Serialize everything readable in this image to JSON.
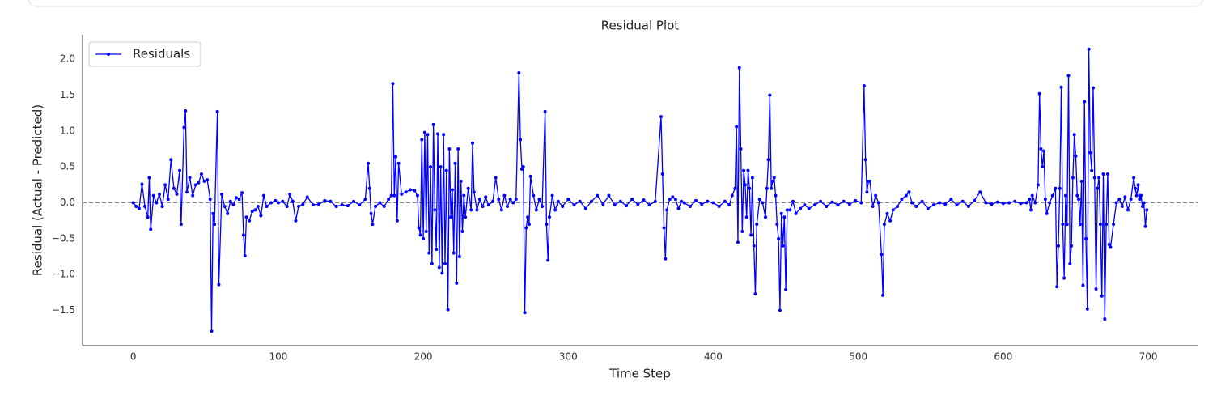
{
  "chart_data": {
    "type": "line",
    "title": "Residual Plot",
    "xlabel": "Time Step",
    "ylabel": "Residual (Actual - Predicted)",
    "legend": "upper left",
    "grid": false,
    "reference_line": {
      "y": 0,
      "color": "#888888",
      "style": "dashed"
    },
    "xlim": [
      -35,
      734
    ],
    "ylim": [
      -1.99,
      2.34
    ],
    "xticks": [
      0,
      100,
      200,
      300,
      400,
      500,
      600,
      700
    ],
    "yticks": [
      {
        "value": -1.5,
        "label": "−1.5"
      },
      {
        "value": -1.0,
        "label": "−1.0"
      },
      {
        "value": -0.5,
        "label": "−0.5"
      },
      {
        "value": 0,
        "label": "0.0"
      },
      {
        "value": 0.5,
        "label": "0.5"
      },
      {
        "value": 1.0,
        "label": "1.0"
      },
      {
        "value": 1.5,
        "label": "1.5"
      },
      {
        "value": 2.0,
        "label": "2.0"
      }
    ],
    "x": [
      0,
      2,
      4,
      6,
      8,
      10,
      11,
      12,
      14,
      16,
      18,
      20,
      22,
      24,
      26,
      28,
      30,
      32,
      33,
      35,
      36,
      37,
      39,
      41,
      43,
      45,
      47,
      49,
      51,
      53,
      54,
      55,
      56,
      58,
      59,
      61,
      63,
      65,
      67,
      69,
      71,
      73,
      75,
      76,
      77,
      78,
      80,
      82,
      84,
      86,
      88,
      90,
      92,
      95,
      98,
      100,
      103,
      106,
      108,
      110,
      112,
      114,
      117,
      120,
      124,
      128,
      132,
      136,
      140,
      144,
      148,
      152,
      156,
      160,
      162,
      163,
      164,
      165,
      167,
      170,
      173,
      176,
      178,
      179,
      180,
      181,
      182,
      183,
      185,
      188,
      191,
      194,
      196,
      197,
      198,
      199,
      200,
      201,
      202,
      203,
      204,
      205,
      206,
      207,
      208,
      209,
      210,
      211,
      212,
      213,
      214,
      215,
      216,
      217,
      218,
      219,
      220,
      221,
      222,
      223,
      224,
      225,
      226,
      227,
      228,
      229,
      231,
      233,
      234,
      235,
      237,
      239,
      241,
      243,
      245,
      248,
      250,
      252,
      254,
      256,
      258,
      260,
      262,
      264,
      266,
      267,
      268,
      269,
      270,
      271,
      272,
      273,
      274,
      276,
      278,
      280,
      282,
      284,
      285,
      286,
      287,
      289,
      291,
      293,
      296,
      300,
      304,
      308,
      312,
      316,
      320,
      324,
      328,
      332,
      336,
      340,
      344,
      348,
      352,
      356,
      360,
      364,
      365,
      366,
      367,
      368,
      370,
      372,
      374,
      376,
      378,
      380,
      384,
      388,
      392,
      396,
      400,
      404,
      408,
      411,
      413,
      415,
      416,
      417,
      418,
      419,
      420,
      421,
      422,
      423,
      424,
      425,
      426,
      427,
      428,
      429,
      430,
      432,
      434,
      436,
      437,
      438,
      439,
      440,
      441,
      442,
      443,
      444,
      445,
      446,
      447,
      448,
      449,
      450,
      451,
      453,
      455,
      457,
      460,
      463,
      466,
      470,
      474,
      478,
      482,
      486,
      490,
      494,
      498,
      502,
      504,
      505,
      506,
      507,
      508,
      510,
      512,
      514,
      516,
      517,
      518,
      520,
      522,
      524,
      527,
      530,
      533,
      535,
      537,
      540,
      544,
      548,
      552,
      556,
      560,
      564,
      568,
      572,
      576,
      580,
      584,
      588,
      592,
      596,
      600,
      604,
      608,
      612,
      616,
      618,
      619,
      620,
      622,
      624,
      625,
      626,
      627,
      628,
      629,
      630,
      632,
      634,
      636,
      637,
      638,
      639,
      640,
      641,
      642,
      643,
      644,
      645,
      646,
      647,
      648,
      649,
      650,
      651,
      652,
      653,
      654,
      655,
      656,
      657,
      658,
      659,
      660,
      661,
      662,
      663,
      664,
      665,
      666,
      667,
      668,
      669,
      670,
      671,
      672,
      673,
      674,
      676,
      678,
      680,
      682,
      684,
      686,
      688,
      690,
      691,
      692,
      693,
      694,
      695,
      696,
      697,
      698,
      699
    ],
    "series": [
      {
        "name": "Residuals",
        "color": "#0000ff",
        "values": [
          0,
          -0.05,
          -0.08,
          0.26,
          -0.05,
          -0.2,
          0.35,
          -0.37,
          0.1,
          0,
          0.12,
          -0.05,
          0.25,
          0.05,
          0.6,
          0.2,
          0.12,
          0.45,
          -0.3,
          1.05,
          1.28,
          0.15,
          0.35,
          0.1,
          0.25,
          0.28,
          0.4,
          0.3,
          0.32,
          0.05,
          -1.79,
          -0.15,
          -0.3,
          1.27,
          -1.14,
          0.12,
          -0.05,
          -0.15,
          0.02,
          -0.03,
          0.07,
          0.05,
          0.14,
          -0.45,
          -0.74,
          -0.2,
          -0.25,
          -0.12,
          -0.1,
          -0.05,
          -0.18,
          0.1,
          -0.05,
          0,
          0.03,
          0,
          0.02,
          -0.05,
          0.12,
          0.02,
          -0.25,
          -0.05,
          -0.02,
          0.08,
          -0.03,
          -0.02,
          0.03,
          0.02,
          -0.05,
          -0.03,
          -0.04,
          0.02,
          -0.03,
          0.05,
          0.55,
          0.2,
          -0.15,
          -0.3,
          -0.05,
          0,
          -0.05,
          0.05,
          0.1,
          1.66,
          0.1,
          0.64,
          -0.25,
          0.55,
          0.12,
          0.15,
          0.18,
          0.17,
          0.1,
          -0.35,
          -0.45,
          0.88,
          -0.5,
          0.98,
          -0.4,
          0.95,
          -0.7,
          0.5,
          -0.85,
          1.09,
          -0.1,
          -0.65,
          0.96,
          -0.9,
          0.5,
          -0.98,
          0.95,
          -0.85,
          0.45,
          -1.49,
          0.75,
          -0.2,
          0.18,
          -0.7,
          0.55,
          -1.12,
          0.75,
          -0.75,
          0.3,
          -0.4,
          0.1,
          -0.2,
          0.2,
          -0.1,
          0.83,
          0.15,
          -0.1,
          0.05,
          -0.05,
          0.08,
          -0.03,
          0.02,
          0.35,
          0.05,
          -0.1,
          0.1,
          -0.05,
          0.05,
          0,
          0.05,
          1.81,
          0.88,
          0.47,
          0.5,
          -1.53,
          -0.35,
          -0.2,
          -0.3,
          0.37,
          0.1,
          -0.1,
          0.05,
          -0.05,
          1.27,
          -0.3,
          -0.8,
          -0.2,
          0.1,
          -0.1,
          0.02,
          -0.05,
          0.05,
          -0.03,
          0.02,
          -0.08,
          0.02,
          0.1,
          -0.02,
          0.1,
          -0.03,
          0.02,
          -0.04,
          0.05,
          -0.02,
          0.04,
          -0.03,
          0.02,
          1.2,
          0.4,
          -0.35,
          -0.78,
          -0.1,
          0.05,
          0.08,
          0.05,
          -0.08,
          0.02,
          0,
          -0.05,
          0.03,
          -0.02,
          0.02,
          0,
          -0.05,
          0.02,
          -0.03,
          0.1,
          0.2,
          1.06,
          -0.55,
          1.88,
          0.75,
          -0.4,
          0.45,
          0.25,
          -0.2,
          0.45,
          0.2,
          -0.45,
          0.35,
          -0.6,
          -1.27,
          -0.3,
          0.05,
          0,
          -0.2,
          0.2,
          0.6,
          1.5,
          0.2,
          0.3,
          0.35,
          0.1,
          -0.3,
          -0.5,
          -1.5,
          -0.15,
          -0.6,
          -0.2,
          -1.21,
          -0.1,
          -0.1,
          0.02,
          -0.15,
          -0.08,
          -0.03,
          -0.08,
          -0.03,
          0.02,
          -0.05,
          0.01,
          -0.03,
          0.02,
          -0.02,
          0.03,
          0,
          1.63,
          0.6,
          0.15,
          0.3,
          0.3,
          -0.05,
          0.1,
          0,
          -0.72,
          -1.29,
          -0.3,
          -0.15,
          -0.25,
          -0.1,
          -0.05,
          0.05,
          0.1,
          0.15,
          0,
          -0.05,
          0.02,
          -0.08,
          -0.03,
          0,
          -0.02,
          0.05,
          -0.03,
          0.02,
          -0.05,
          0.03,
          0.15,
          0,
          -0.02,
          0.01,
          -0.01,
          0,
          0.02,
          -0.01,
          0,
          0.05,
          -0.1,
          0.1,
          0,
          0.25,
          1.52,
          0.75,
          0.5,
          0.72,
          0.05,
          -0.15,
          0,
          0.1,
          0.2,
          -1.17,
          -0.6,
          0.2,
          1.61,
          -0.3,
          -1.05,
          0.1,
          -0.3,
          1.77,
          -0.85,
          -0.6,
          0.35,
          0.95,
          0.65,
          0.1,
          0.05,
          -0.3,
          0.3,
          -1.15,
          1.41,
          -0.5,
          -1.48,
          2.14,
          0.7,
          0.45,
          1.6,
          0.35,
          -1.2,
          0.2,
          0.35,
          -0.3,
          -1.3,
          0.4,
          -1.62,
          -0.3,
          0.4,
          -0.58,
          -0.62,
          -0.3,
          0,
          0.05,
          -0.05,
          0.08,
          -0.1,
          0.05,
          0.35,
          0.2,
          0.1,
          0.25,
          0.05,
          0.1,
          -0.05,
          0,
          -0.33,
          -0.1
        ]
      }
    ]
  }
}
